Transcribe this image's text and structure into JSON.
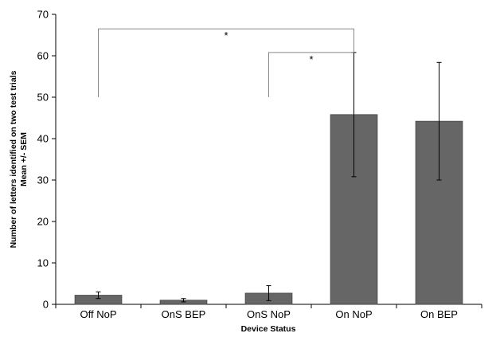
{
  "chart_data": {
    "type": "bar",
    "categories": [
      "Off NoP",
      "OnS BEP",
      "OnS NoP",
      "On NoP",
      "On BEP"
    ],
    "values": [
      2.2,
      1.0,
      2.7,
      45.8,
      44.2
    ],
    "error_bars": [
      0.8,
      0.4,
      1.8,
      15.0,
      14.2
    ],
    "xlabel": "Device Status",
    "ylabel_lines": [
      "Number of letters identified on two test trials",
      "Mean +/- SEM"
    ],
    "ylim": [
      0,
      70
    ],
    "yticks": [
      0,
      10,
      20,
      30,
      40,
      50,
      60,
      70
    ],
    "grid": false,
    "bar_color": "#666666",
    "significance": [
      {
        "from": "Off NoP",
        "to": "On NoP",
        "y_left": 50,
        "y_right": 60.8,
        "y_top": 66.5,
        "label": "*"
      },
      {
        "from": "OnS NoP",
        "to": "On NoP",
        "y_left": 50,
        "y_right": 60.8,
        "y_top": 60.8,
        "label": "*"
      }
    ]
  }
}
